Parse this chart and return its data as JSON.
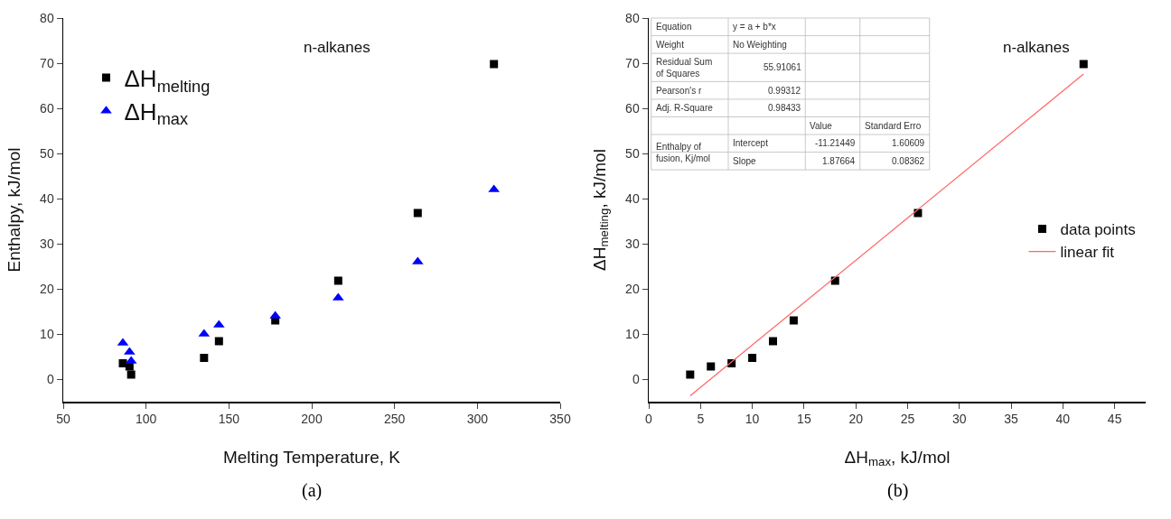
{
  "chart_data": [
    {
      "type": "scatter",
      "xlabel": "Melting Temperature, K",
      "ylabel": "Enthalpy, kJ/mol",
      "x": [
        86,
        90,
        91,
        135,
        144,
        178,
        216,
        264,
        310
      ],
      "series": [
        {
          "name": "ΔH$_{melting}$",
          "color": "#000000",
          "marker": "square",
          "values": [
            3.5,
            2.8,
            1.0,
            4.7,
            8.4,
            13,
            21.8,
            36.8,
            69.8
          ]
        },
        {
          "name": "ΔH$_{max}$",
          "color": "#0000ff",
          "marker": "triangle",
          "values": [
            8,
            6,
            4,
            10,
            12,
            14,
            18,
            26,
            42
          ]
        }
      ],
      "xlim": [
        50,
        350
      ],
      "xticks": [
        50,
        100,
        150,
        200,
        250,
        300,
        350
      ],
      "ylim": [
        -5,
        80
      ],
      "yticks": [
        0,
        10,
        20,
        30,
        40,
        50,
        60,
        70,
        80
      ],
      "grid": false,
      "legend": "top left",
      "annotations": [
        "n-alkanes",
        "(a)"
      ]
    },
    {
      "type": "scatter",
      "xlabel": "ΔH$_{max}$, kJ/mol",
      "ylabel": "ΔH$_{melting}$, kJ/mol",
      "series": [
        {
          "name": "data points",
          "color": "#000000",
          "marker": "square",
          "x": [
            4,
            6,
            8,
            10,
            12,
            14,
            18,
            26,
            42
          ],
          "values": [
            1.0,
            2.8,
            3.5,
            4.7,
            8.4,
            13,
            21.8,
            36.8,
            69.8
          ]
        },
        {
          "name": "linear fit",
          "type": "line",
          "color": "#ff6666",
          "marker": "none",
          "line_style": "solid",
          "x": [
            4,
            42
          ],
          "values": [
            -3.7,
            67.6
          ]
        }
      ],
      "xlim": [
        0,
        48
      ],
      "xticks": [
        0,
        5,
        10,
        15,
        20,
        25,
        30,
        35,
        40,
        45
      ],
      "ylim": [
        -5,
        80
      ],
      "yticks": [
        0,
        10,
        20,
        30,
        40,
        50,
        60,
        70,
        80
      ],
      "grid": false,
      "legend": "right",
      "annotations": [
        "n-alkanes",
        "(b)",
        "Equation",
        "y = a + b*x",
        "Weight",
        "No Weighting",
        "Residual Sum\nof Squares",
        "55.91061",
        "Pearson's r",
        "0.99312",
        "Adj. R-Square",
        "0.98433",
        "Value",
        "Standard Erro",
        "Enthalpy of\nfusion, Kj/mol",
        "Intercept",
        "-11.21449",
        "1.60609",
        "Slope",
        "1.87664",
        "0.08362"
      ]
    }
  ]
}
